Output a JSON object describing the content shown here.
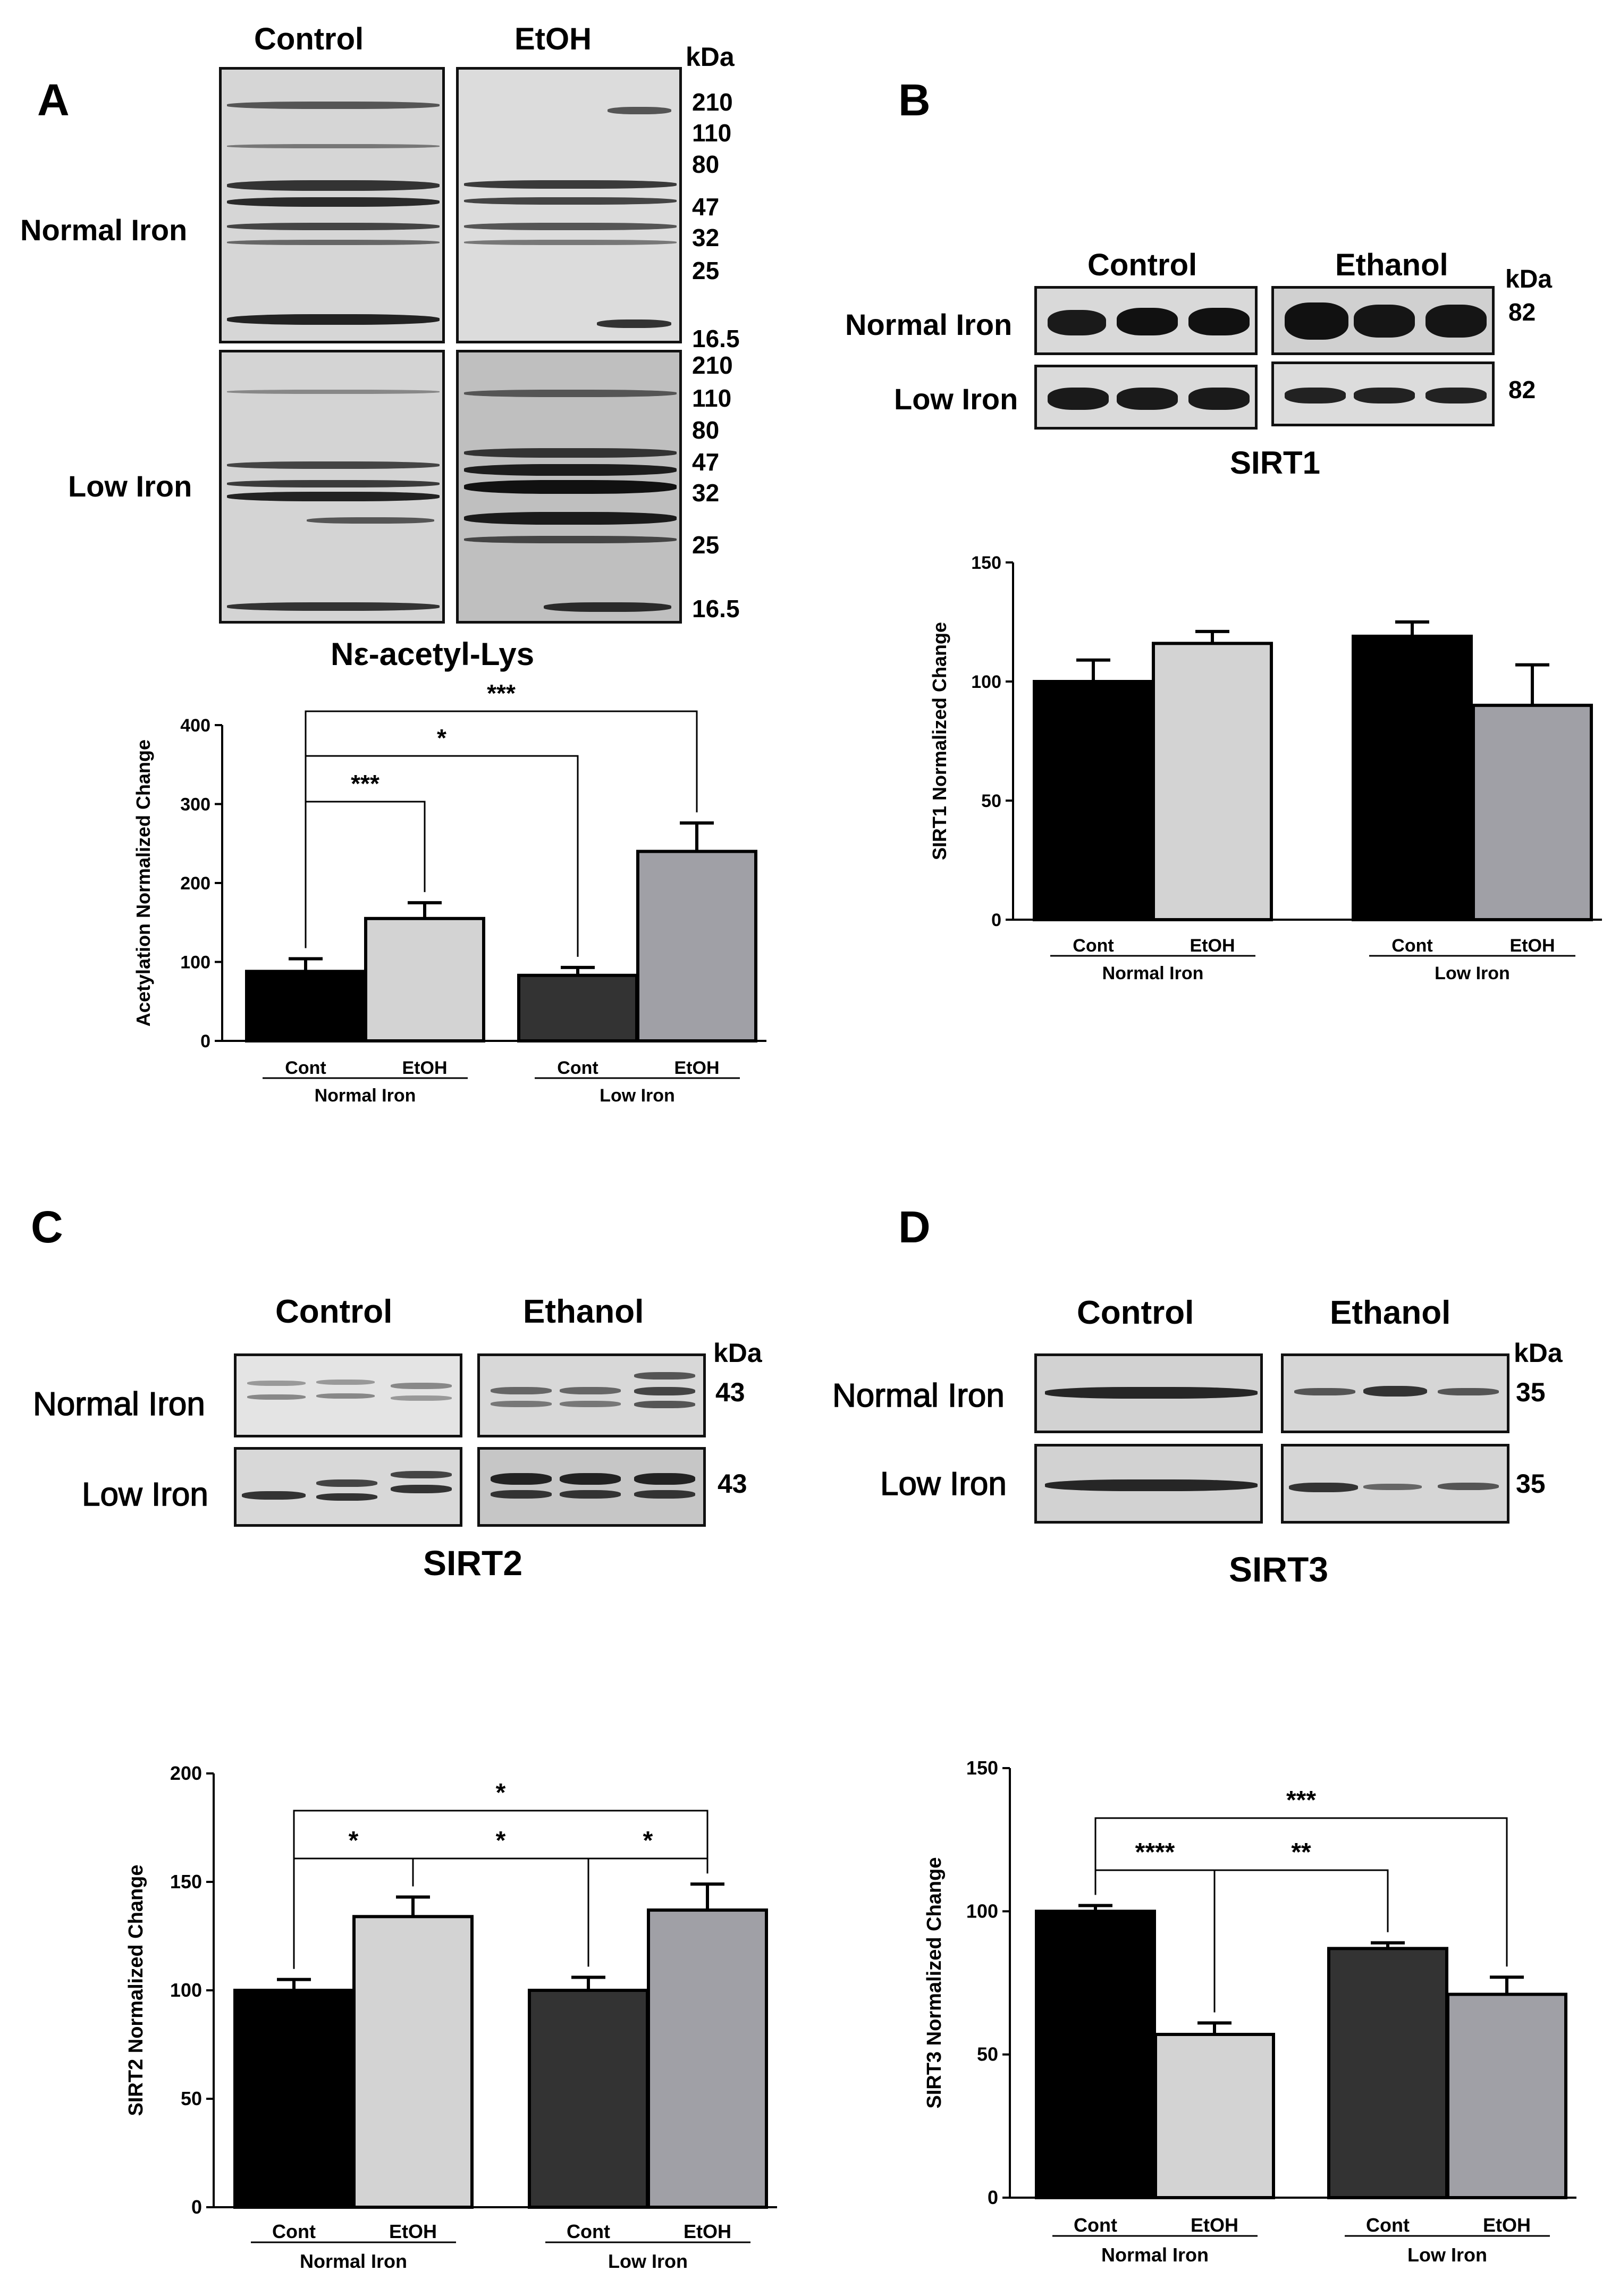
{
  "panels": {
    "A": {
      "letter": "A",
      "col_headers": [
        "Control",
        "EtOH"
      ],
      "kda_label": "kDa",
      "row_labels": [
        "Normal Iron",
        "Low Iron"
      ],
      "markers_top": [
        "210",
        "110",
        "80",
        "47",
        "32",
        "25",
        "16.5"
      ],
      "markers_bottom": [
        "210",
        "110",
        "80",
        "47",
        "32",
        "25",
        "16.5"
      ],
      "blot_title": "Nε-acetyl-Lys"
    },
    "B": {
      "letter": "B",
      "col_headers": [
        "Control",
        "Ethanol"
      ],
      "kda_label": "kDa",
      "row_labels": [
        "Normal Iron",
        "Low Iron"
      ],
      "markers": [
        "82",
        "82"
      ],
      "blot_title": "SIRT1"
    },
    "C": {
      "letter": "C",
      "col_headers": [
        "Control",
        "Ethanol"
      ],
      "kda_label": "kDa",
      "row_labels": [
        "Normal Iron",
        "Low Iron"
      ],
      "markers": [
        "43",
        "43"
      ],
      "blot_title": "SIRT2"
    },
    "D": {
      "letter": "D",
      "col_headers": [
        "Control",
        "Ethanol"
      ],
      "kda_label": "kDa",
      "row_labels": [
        "Normal Iron",
        "Low Iron"
      ],
      "markers": [
        "35",
        "35"
      ],
      "blot_title": "SIRT3"
    }
  },
  "colors": {
    "black": "#000000",
    "light_gray": "#d3d3d3",
    "dark_gray": "#333333",
    "mid_gray": "#a0a0a6"
  },
  "chart_data": [
    {
      "id": "A",
      "type": "bar",
      "ylabel": "Acetylation Normalized Change",
      "ylim": [
        0,
        400
      ],
      "yticks": [
        0,
        100,
        200,
        300,
        400
      ],
      "categories": [
        "Cont",
        "EtOH",
        "Cont",
        "EtOH"
      ],
      "groups": [
        "Normal Iron",
        "Low Iron"
      ],
      "values": [
        88,
        155,
        83,
        240
      ],
      "errors": [
        16,
        20,
        10,
        36
      ],
      "fills": [
        "#000000",
        "#d3d3d3",
        "#333333",
        "#a0a0a6"
      ],
      "significance": [
        {
          "from": 0,
          "to": 1,
          "label": "***"
        },
        {
          "from": 0,
          "to": 2,
          "label": "*"
        },
        {
          "from": 0,
          "to": 3,
          "label": "***"
        }
      ]
    },
    {
      "id": "B",
      "type": "bar",
      "ylabel": "SIRT1 Normalized Change",
      "ylim": [
        0,
        150
      ],
      "yticks": [
        0,
        50,
        100,
        150
      ],
      "categories": [
        "Cont",
        "EtOH",
        "Cont",
        "EtOH"
      ],
      "groups": [
        "Normal Iron",
        "Low Iron"
      ],
      "values": [
        100,
        116,
        119,
        90
      ],
      "errors": [
        9,
        5,
        6,
        17
      ],
      "fills": [
        "#000000",
        "#d3d3d3",
        "#000000",
        "#a0a0a6"
      ],
      "significance": []
    },
    {
      "id": "C",
      "type": "bar",
      "ylabel": "SIRT2 Normalized Change",
      "ylim": [
        0,
        200
      ],
      "yticks": [
        0,
        50,
        100,
        150,
        200
      ],
      "categories": [
        "Cont",
        "EtOH",
        "Cont",
        "EtOH"
      ],
      "groups": [
        "Normal Iron",
        "Low Iron"
      ],
      "values": [
        100,
        134,
        100,
        137
      ],
      "errors": [
        5,
        9,
        6,
        12
      ],
      "fills": [
        "#000000",
        "#d3d3d3",
        "#333333",
        "#a0a0a6"
      ],
      "significance": [
        {
          "from": 0,
          "to": 1,
          "label": "*"
        },
        {
          "from": 1,
          "to": 2,
          "label": "*"
        },
        {
          "from": 2,
          "to": 3,
          "label": "*"
        },
        {
          "from": 0,
          "to": 3,
          "label": "*"
        }
      ]
    },
    {
      "id": "D",
      "type": "bar",
      "ylabel": "SIRT3 Normalized Change",
      "ylim": [
        0,
        150
      ],
      "yticks": [
        0,
        50,
        100,
        150
      ],
      "categories": [
        "Cont",
        "EtOH",
        "Cont",
        "EtOH"
      ],
      "groups": [
        "Normal Iron",
        "Low Iron"
      ],
      "values": [
        100,
        57,
        87,
        71
      ],
      "errors": [
        2,
        4,
        2,
        6
      ],
      "fills": [
        "#000000",
        "#d3d3d3",
        "#333333",
        "#a0a0a6"
      ],
      "significance": [
        {
          "from": 0,
          "to": 1,
          "label": "****"
        },
        {
          "from": 1,
          "to": 2,
          "label": "**"
        },
        {
          "from": 0,
          "to": 3,
          "label": "***"
        }
      ]
    }
  ]
}
